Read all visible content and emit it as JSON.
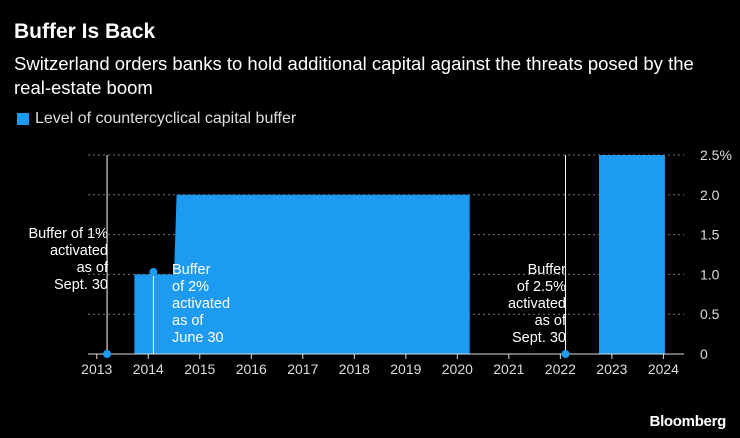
{
  "chart_data": {
    "type": "area",
    "title": "Buffer Is Back",
    "subtitle": "Switzerland orders banks to hold additional capital against the threats posed by the real-estate boom",
    "legend": [
      {
        "name": "Level of countercyclical capital buffer",
        "color": "#1d9bf0"
      }
    ],
    "series": [
      {
        "name": "Level of countercyclical capital buffer",
        "x": [
          2013.2,
          2013.73,
          2013.73,
          2014.17,
          2014.5,
          2014.55,
          2020.24,
          2020.24,
          2022.75,
          2022.75,
          2024.03,
          2024.03
        ],
        "y": [
          0,
          0,
          1,
          1,
          1,
          2,
          2,
          0,
          0,
          2.5,
          2.5,
          0
        ]
      }
    ],
    "x_ticks": [
      "2013",
      "2014",
      "2015",
      "2016",
      "2017",
      "2018",
      "2019",
      "2020",
      "2021",
      "2022",
      "2023",
      "2024"
    ],
    "y_ticks": [
      "0",
      "0.5",
      "1.0",
      "1.5",
      "2.0",
      "2.5%"
    ],
    "xlim": [
      2012.83,
      2024.4
    ],
    "ylim": [
      0,
      2.5
    ],
    "annotations": [
      {
        "lines": [
          "Buffer of 1%",
          "activated",
          "as of",
          "Sept. 30"
        ],
        "x": 2013.2,
        "label_side": "left"
      },
      {
        "lines": [
          "Buffer",
          "of 2%",
          "activated",
          "as of",
          "June 30"
        ],
        "x": 2014.1,
        "label_side": "right"
      },
      {
        "lines": [
          "Buffer",
          "of 2.5%",
          "activated",
          "as of",
          "Sept. 30"
        ],
        "x": 2022.1,
        "label_side": "left"
      }
    ]
  },
  "colors": {
    "accent": "#1d9bf0",
    "background": "#000000",
    "grid": "#777777"
  },
  "source": "Bloomberg"
}
